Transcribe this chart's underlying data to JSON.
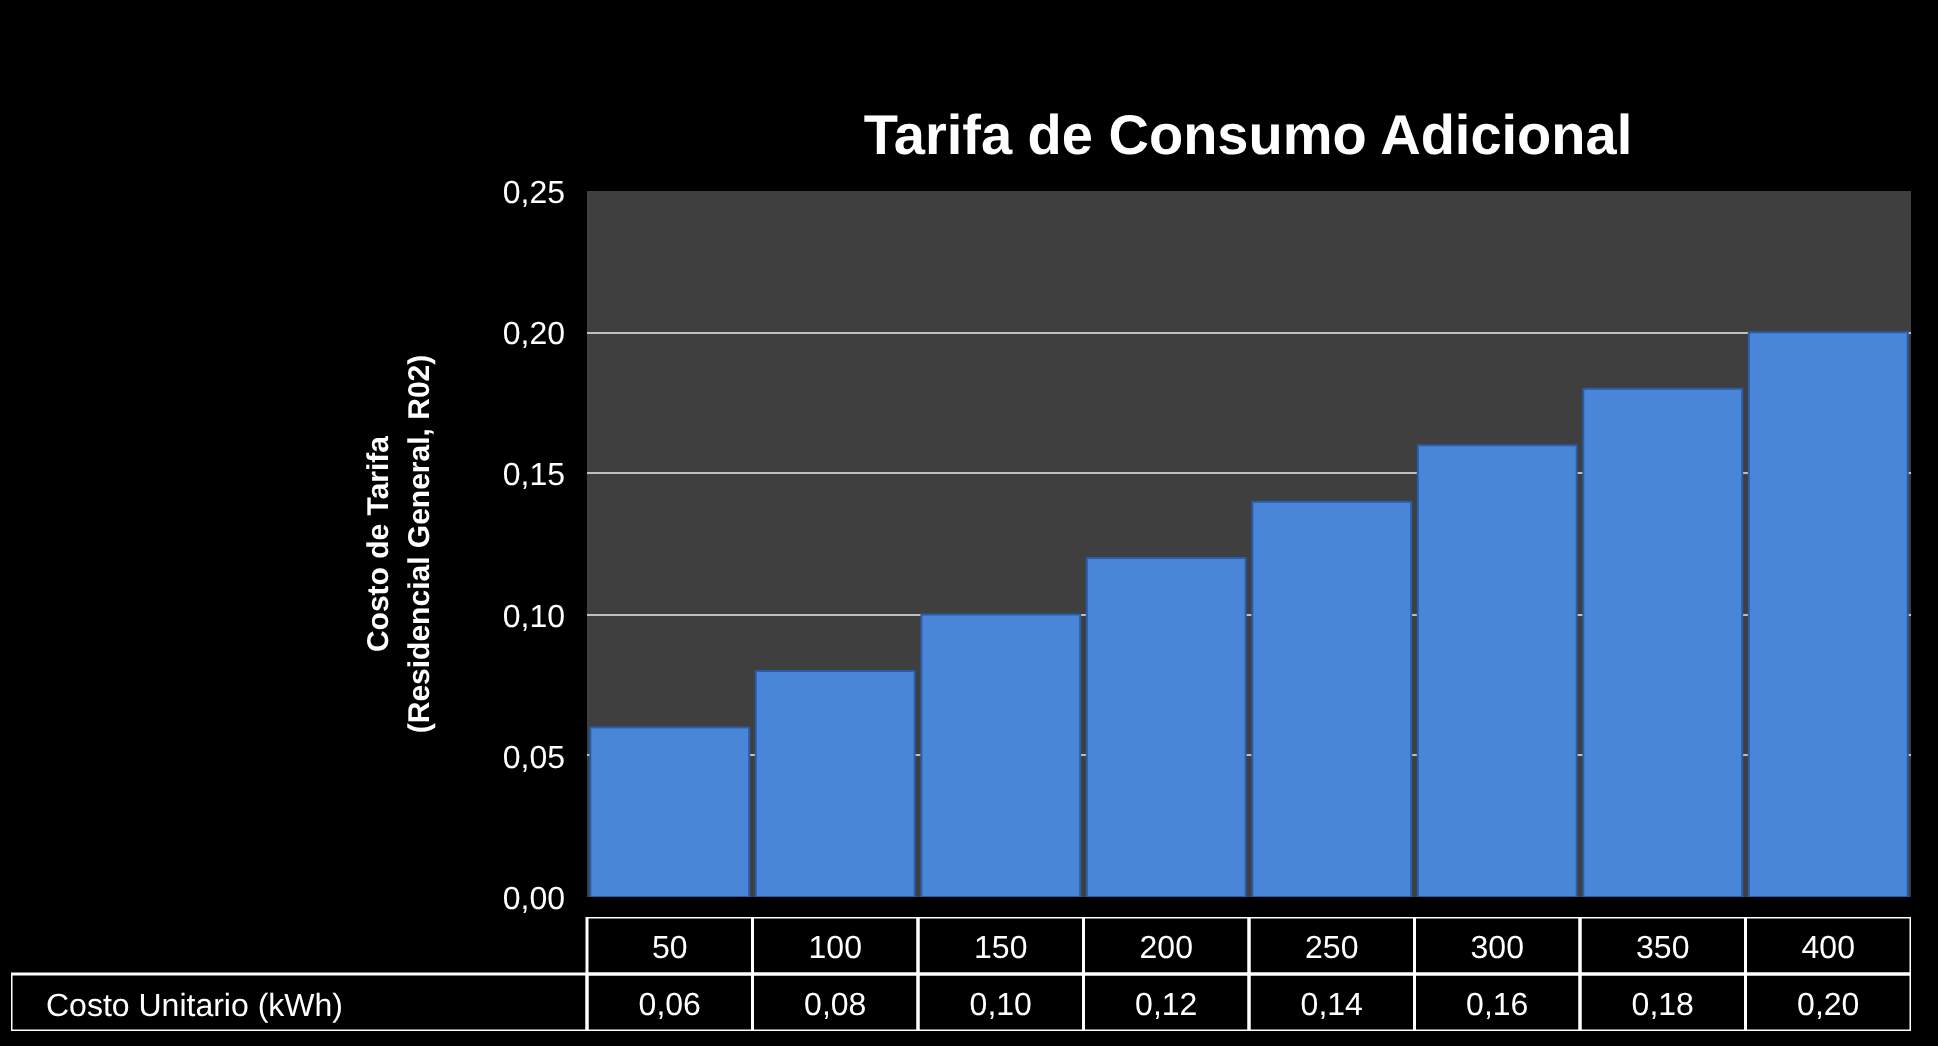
{
  "chart_data": {
    "type": "bar",
    "title": "Tarifa de Consumo Adicional",
    "ylabel": "Costo de Tarifa\n(Residencial General, R02)",
    "categories": [
      "50",
      "100",
      "150",
      "200",
      "250",
      "300",
      "350",
      "400"
    ],
    "series": [
      {
        "name": "Costo Unitario (kWh)",
        "color": "#4a86d8",
        "values": [
          0.06,
          0.08,
          0.1,
          0.12,
          0.14,
          0.16,
          0.18,
          0.2
        ],
        "value_labels": [
          "0,06",
          "0,08",
          "0,10",
          "0,12",
          "0,14",
          "0,16",
          "0,18",
          "0,20"
        ]
      }
    ],
    "ylim": [
      0,
      0.25
    ],
    "yticks": [
      {
        "value": 0,
        "label": "0,00"
      },
      {
        "value": 0.05,
        "label": "0,05"
      },
      {
        "value": 0.1,
        "label": "0,10"
      },
      {
        "value": 0.15,
        "label": "0,15"
      },
      {
        "value": 0.2,
        "label": "0,20"
      },
      {
        "value": 0.25,
        "label": "0,25"
      }
    ],
    "grid": "y",
    "legend": "bottom"
  }
}
